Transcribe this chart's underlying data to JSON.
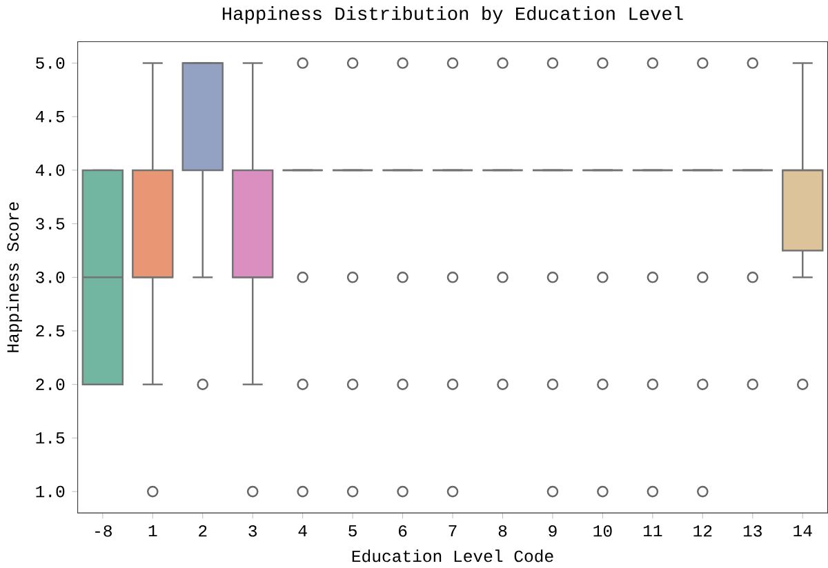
{
  "chart_data": {
    "type": "box",
    "title": "Happiness Distribution by Education Level",
    "xlabel": "Education Level Code",
    "ylabel": "Happiness Score",
    "categories": [
      "-8",
      "1",
      "2",
      "3",
      "4",
      "5",
      "6",
      "7",
      "8",
      "9",
      "10",
      "11",
      "12",
      "13",
      "14"
    ],
    "colors": [
      "#72b6a1",
      "#e99675",
      "#93a1c3",
      "#da8fc0",
      "#737373",
      "#737373",
      "#737373",
      "#737373",
      "#737373",
      "#737373",
      "#737373",
      "#737373",
      "#737373",
      "#737373",
      "#dcc39a"
    ],
    "boxes": [
      {
        "low": 2,
        "q1": 2,
        "median": 3,
        "q3": 4,
        "high": 4
      },
      {
        "low": 2,
        "q1": 3,
        "median": 3,
        "q3": 4,
        "high": 5,
        "outliers": [
          1
        ]
      },
      {
        "low": 3,
        "q1": 4,
        "median": 5,
        "q3": 5,
        "high": 5,
        "outliers": [
          2
        ]
      },
      {
        "low": 2,
        "q1": 3,
        "median": 3,
        "q3": 4,
        "high": 5,
        "outliers": [
          1
        ]
      },
      {
        "low": 4,
        "q1": 4,
        "median": 4,
        "q3": 4,
        "high": 4,
        "outliers": [
          5,
          3,
          2,
          1
        ]
      },
      {
        "low": 4,
        "q1": 4,
        "median": 4,
        "q3": 4,
        "high": 4,
        "outliers": [
          5,
          3,
          2,
          1
        ]
      },
      {
        "low": 4,
        "q1": 4,
        "median": 4,
        "q3": 4,
        "high": 4,
        "outliers": [
          5,
          3,
          2,
          1
        ]
      },
      {
        "low": 4,
        "q1": 4,
        "median": 4,
        "q3": 4,
        "high": 4,
        "outliers": [
          5,
          3,
          2,
          1
        ]
      },
      {
        "low": 4,
        "q1": 4,
        "median": 4,
        "q3": 4,
        "high": 4,
        "outliers": [
          5,
          3,
          2
        ]
      },
      {
        "low": 4,
        "q1": 4,
        "median": 4,
        "q3": 4,
        "high": 4,
        "outliers": [
          5,
          3,
          2,
          1
        ]
      },
      {
        "low": 4,
        "q1": 4,
        "median": 4,
        "q3": 4,
        "high": 4,
        "outliers": [
          5,
          3,
          2,
          1
        ]
      },
      {
        "low": 4,
        "q1": 4,
        "median": 4,
        "q3": 4,
        "high": 4,
        "outliers": [
          5,
          3,
          2,
          1
        ]
      },
      {
        "low": 4,
        "q1": 4,
        "median": 4,
        "q3": 4,
        "high": 4,
        "outliers": [
          5,
          3,
          2,
          1
        ]
      },
      {
        "low": 4,
        "q1": 4,
        "median": 4,
        "q3": 4,
        "high": 4,
        "outliers": [
          5,
          3,
          2
        ]
      },
      {
        "low": 3,
        "q1": 3.25,
        "median": 4,
        "q3": 4,
        "high": 5,
        "outliers": [
          2
        ]
      }
    ],
    "ylim": [
      0.8,
      5.2
    ],
    "yticks": [
      {
        "value": 1,
        "label": "1.0"
      },
      {
        "value": 1.5,
        "label": "1.5"
      },
      {
        "value": 2,
        "label": "2.0"
      },
      {
        "value": 2.5,
        "label": "2.5"
      },
      {
        "value": 3,
        "label": "3.0"
      },
      {
        "value": 3.5,
        "label": "3.5"
      },
      {
        "value": 4,
        "label": "4.0"
      },
      {
        "value": 4.5,
        "label": "4.5"
      },
      {
        "value": 5,
        "label": "5.0"
      }
    ]
  }
}
